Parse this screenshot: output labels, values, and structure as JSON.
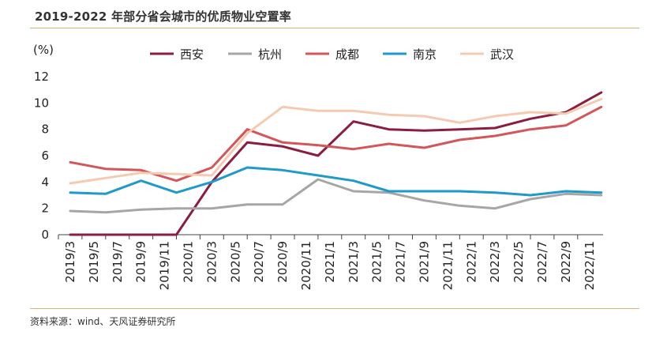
{
  "header": {
    "title": "2019-2022 年部分省会城市的优质物业空置率"
  },
  "footer": {
    "source": "资料来源：wind、天风证券研究所"
  },
  "chart_data": {
    "type": "line",
    "title": "2019-2022 年部分省会城市的优质物业空置率",
    "ylabel": "(%)",
    "xlabel": "",
    "ylim": [
      0,
      12
    ],
    "yticks": [
      "0",
      "2",
      "4",
      "6",
      "8",
      "10",
      "12"
    ],
    "categories": [
      "2019/3",
      "2019/5",
      "2019/7",
      "2019/9",
      "2019/11",
      "2020/1",
      "2020/3",
      "2020/5",
      "2020/7",
      "2020/9",
      "2020/11",
      "2021/1",
      "2021/3",
      "2021/5",
      "2021/7",
      "2021/9",
      "2021/11",
      "2022/1",
      "2022/3",
      "2022/5",
      "2022/7",
      "2022/9",
      "2022/11"
    ],
    "x": [
      "2019/3",
      "2019/6",
      "2019/9",
      "2019/12",
      "2020/3",
      "2020/6",
      "2020/9",
      "2020/12",
      "2021/3",
      "2021/6",
      "2021/9",
      "2021/12",
      "2022/3",
      "2022/6",
      "2022/9",
      "2022/12"
    ],
    "series": [
      {
        "name": "西安",
        "color": "#8b1d3f",
        "values": [
          0,
          0,
          0,
          0,
          4.0,
          7.0,
          6.7,
          6.0,
          8.6,
          8.0,
          7.9,
          8.0,
          8.1,
          8.8,
          9.3,
          10.8
        ]
      },
      {
        "name": "杭州",
        "color": "#a6a6a6",
        "values": [
          1.8,
          1.7,
          1.9,
          2.0,
          2.0,
          2.3,
          2.3,
          4.2,
          3.3,
          3.2,
          2.6,
          2.2,
          2.0,
          2.7,
          3.1,
          3.0
        ]
      },
      {
        "name": "成都",
        "color": "#d2565a",
        "values": [
          5.5,
          5.0,
          4.9,
          4.1,
          5.1,
          8.0,
          7.0,
          6.8,
          6.5,
          6.9,
          6.6,
          7.2,
          7.5,
          8.0,
          8.3,
          9.7
        ]
      },
      {
        "name": "南京",
        "color": "#1f9ac9",
        "values": [
          3.2,
          3.1,
          4.1,
          3.2,
          4.0,
          5.1,
          4.9,
          4.5,
          4.1,
          3.3,
          3.3,
          3.3,
          3.2,
          3.0,
          3.3,
          3.2
        ]
      },
      {
        "name": "武汉",
        "color": "#f4cbb0",
        "values": [
          3.9,
          4.3,
          4.7,
          4.6,
          4.5,
          7.7,
          9.7,
          9.4,
          9.4,
          9.1,
          9.0,
          8.5,
          9.0,
          9.3,
          9.2,
          10.3
        ]
      }
    ],
    "legend_position": "top"
  }
}
